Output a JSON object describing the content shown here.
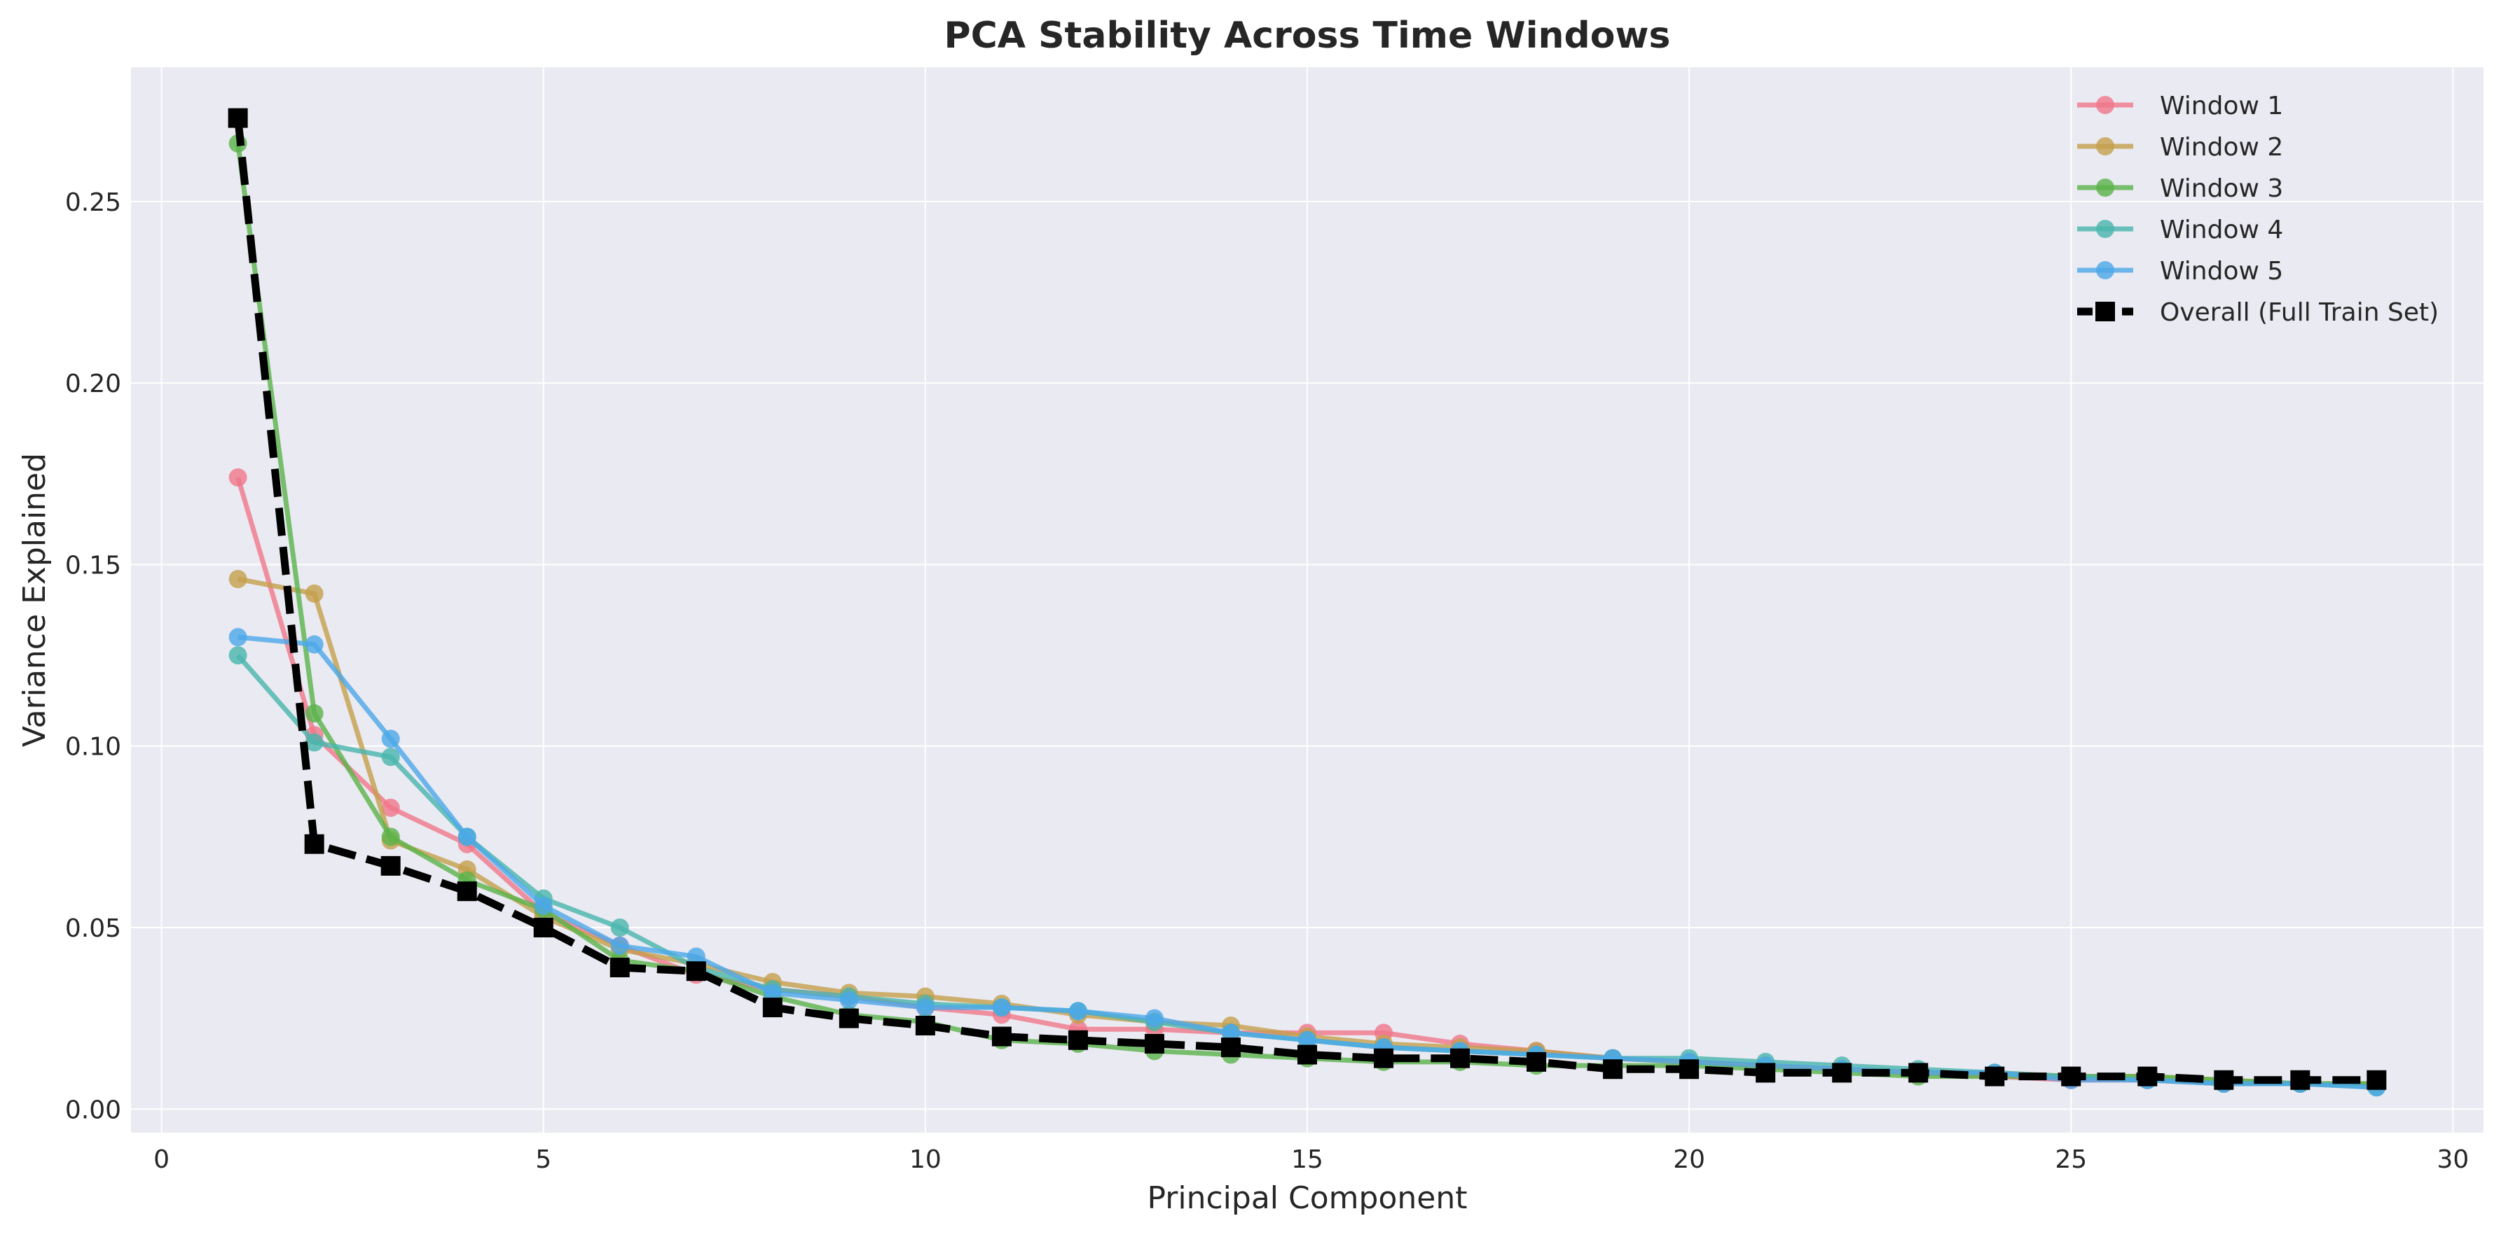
{
  "chart_data": {
    "type": "line",
    "title": "PCA Stability Across Time Windows",
    "xlabel": "Principal Component",
    "ylabel": "Variance Explained",
    "xlim": [
      -0.4,
      30.4
    ],
    "ylim": [
      -0.0065,
      0.287
    ],
    "xticks": [
      0,
      5,
      10,
      15,
      20,
      25,
      30
    ],
    "yticks": [
      0.0,
      0.05,
      0.1,
      0.15,
      0.2,
      0.25
    ],
    "ytick_labels": [
      "0.00",
      "0.05",
      "0.10",
      "0.15",
      "0.20",
      "0.25"
    ],
    "grid": true,
    "legend_position": "top-right",
    "x": [
      1,
      2,
      3,
      4,
      5,
      6,
      7,
      8,
      9,
      10,
      11,
      12,
      13,
      14,
      15,
      16,
      17,
      18,
      19,
      20,
      21,
      22,
      23,
      24,
      25,
      26,
      27,
      28,
      29
    ],
    "series": [
      {
        "name": "Window 1",
        "color": "#f0778a",
        "marker": "circle",
        "dashed": false,
        "values": [
          0.174,
          0.103,
          0.083,
          0.073,
          0.054,
          0.045,
          0.037,
          0.033,
          0.031,
          0.028,
          0.026,
          0.022,
          0.022,
          0.021,
          0.021,
          0.021,
          0.018,
          0.016,
          0.014,
          0.013,
          0.012,
          0.011,
          0.01,
          0.009,
          0.008,
          0.008,
          0.007,
          0.007,
          0.007
        ]
      },
      {
        "name": "Window 2",
        "color": "#c49f4b",
        "marker": "circle",
        "dashed": false,
        "values": [
          0.146,
          0.142,
          0.074,
          0.066,
          0.053,
          0.044,
          0.04,
          0.035,
          0.032,
          0.031,
          0.029,
          0.026,
          0.024,
          0.023,
          0.02,
          0.018,
          0.017,
          0.016,
          0.014,
          0.013,
          0.012,
          0.011,
          0.01,
          0.01,
          0.009,
          0.009,
          0.008,
          0.007,
          0.007
        ]
      },
      {
        "name": "Window 3",
        "color": "#5ab34a",
        "marker": "circle",
        "dashed": false,
        "values": [
          0.266,
          0.109,
          0.075,
          0.063,
          0.055,
          0.041,
          0.038,
          0.031,
          0.026,
          0.024,
          0.019,
          0.018,
          0.016,
          0.015,
          0.014,
          0.013,
          0.013,
          0.012,
          0.012,
          0.012,
          0.011,
          0.01,
          0.009,
          0.009,
          0.009,
          0.009,
          0.008,
          0.007,
          0.007
        ]
      },
      {
        "name": "Window 4",
        "color": "#48b5ac",
        "marker": "circle",
        "dashed": false,
        "values": [
          0.125,
          0.101,
          0.097,
          0.075,
          0.058,
          0.05,
          0.039,
          0.033,
          0.031,
          0.029,
          0.028,
          0.027,
          0.024,
          0.021,
          0.019,
          0.017,
          0.016,
          0.015,
          0.014,
          0.014,
          0.013,
          0.012,
          0.011,
          0.01,
          0.009,
          0.008,
          0.007,
          0.007,
          0.006
        ]
      },
      {
        "name": "Window 5",
        "color": "#4ca8e8",
        "marker": "circle",
        "dashed": false,
        "values": [
          0.13,
          0.128,
          0.102,
          0.075,
          0.056,
          0.045,
          0.042,
          0.032,
          0.03,
          0.028,
          0.028,
          0.027,
          0.025,
          0.021,
          0.019,
          0.017,
          0.016,
          0.015,
          0.014,
          0.013,
          0.012,
          0.011,
          0.01,
          0.01,
          0.008,
          0.008,
          0.007,
          0.007,
          0.006
        ]
      },
      {
        "name": "Overall (Full Train Set)",
        "color": "#000000",
        "marker": "square",
        "dashed": true,
        "values": [
          0.273,
          0.073,
          0.067,
          0.06,
          0.05,
          0.039,
          0.038,
          0.028,
          0.025,
          0.023,
          0.02,
          0.019,
          0.018,
          0.017,
          0.015,
          0.014,
          0.014,
          0.013,
          0.011,
          0.011,
          0.01,
          0.01,
          0.01,
          0.009,
          0.009,
          0.009,
          0.008,
          0.008,
          0.008
        ]
      }
    ]
  }
}
